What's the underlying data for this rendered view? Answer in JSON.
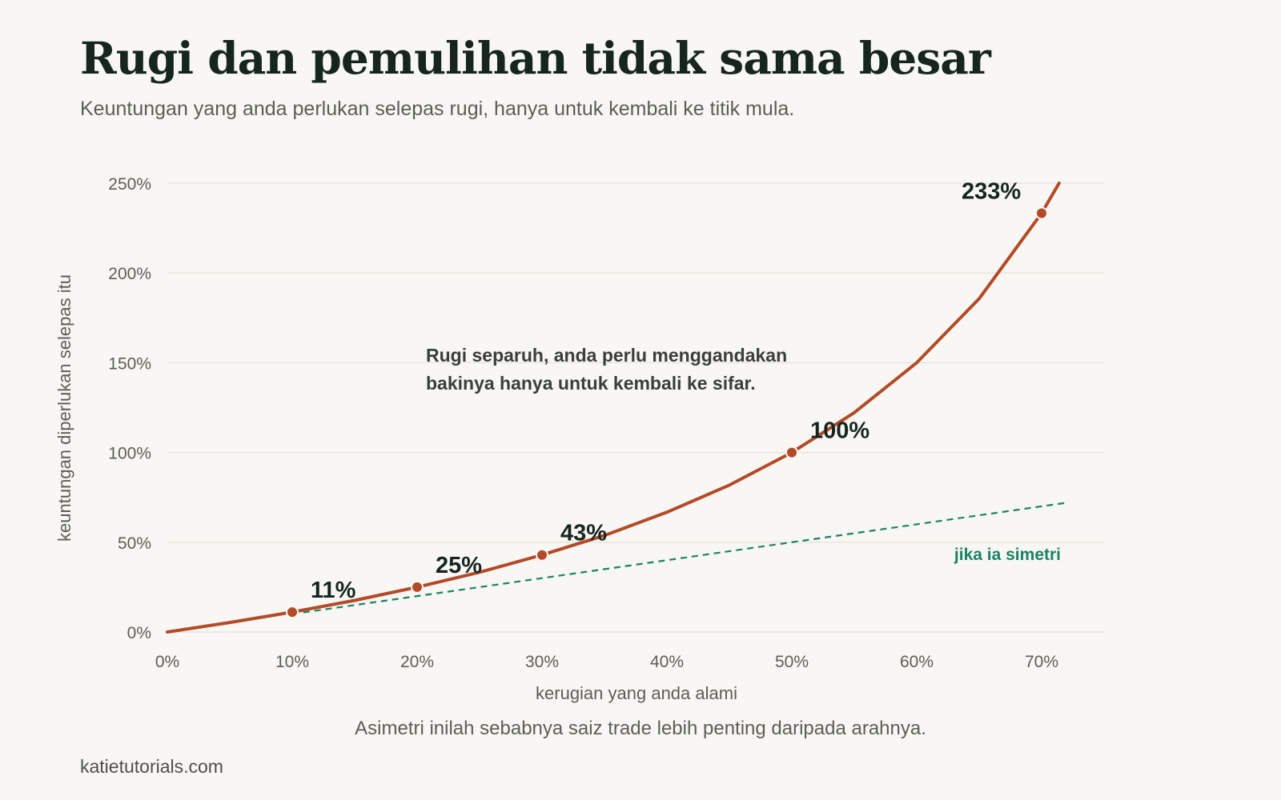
{
  "header": {
    "title": "Rugi dan pemulihan tidak sama besar",
    "subtitle": "Keuntungan yang anda perlukan selepas rugi, hanya untuk kembali ke titik mula."
  },
  "footer": {
    "source": "katietutorials.com"
  },
  "colors": {
    "curve": "#b34a28",
    "reference": "#1a8266",
    "grid": "#e5e3de",
    "text": "#17251f",
    "muted": "#5d5d58"
  },
  "chart_data": {
    "type": "line",
    "xlabel": "kerugian yang anda alami",
    "ylabel": "keuntungan diperlukan selepas itu",
    "x_ticks": [
      "0%",
      "10%",
      "20%",
      "30%",
      "40%",
      "50%",
      "60%",
      "70%"
    ],
    "y_ticks": [
      "0%",
      "50%",
      "100%",
      "150%",
      "200%",
      "250%"
    ],
    "xlim": [
      0,
      72
    ],
    "ylim": [
      0,
      250
    ],
    "grid": true,
    "series": [
      {
        "kind": "curve",
        "color": "#b34a28",
        "x": [
          0,
          5,
          10,
          15,
          20,
          25,
          30,
          35,
          40,
          45,
          50,
          55,
          60,
          65,
          70,
          71.4
        ],
        "y": [
          0,
          5.3,
          11.1,
          17.6,
          25,
          33.3,
          42.9,
          53.8,
          66.7,
          81.8,
          100,
          122.2,
          150,
          185.7,
          233.3,
          250
        ]
      },
      {
        "name": "jika ia simetri",
        "kind": "reference",
        "color": "#1a8266",
        "x": [
          10,
          72
        ],
        "y": [
          10,
          72
        ]
      }
    ],
    "points": [
      {
        "x": 10,
        "y": 11.1,
        "label": "11%"
      },
      {
        "x": 20,
        "y": 25,
        "label": "25%"
      },
      {
        "x": 30,
        "y": 42.9,
        "label": "43%"
      },
      {
        "x": 50,
        "y": 100,
        "label": "100%"
      },
      {
        "x": 70,
        "y": 233.3,
        "label": "233%"
      }
    ],
    "annotation": {
      "lines": [
        "Rugi separuh, anda perlu menggandakan",
        "bakinya hanya untuk kembali ke sifar."
      ]
    },
    "caption": "Asimetri inilah sebabnya saiz trade lebih penting daripada arahnya."
  }
}
